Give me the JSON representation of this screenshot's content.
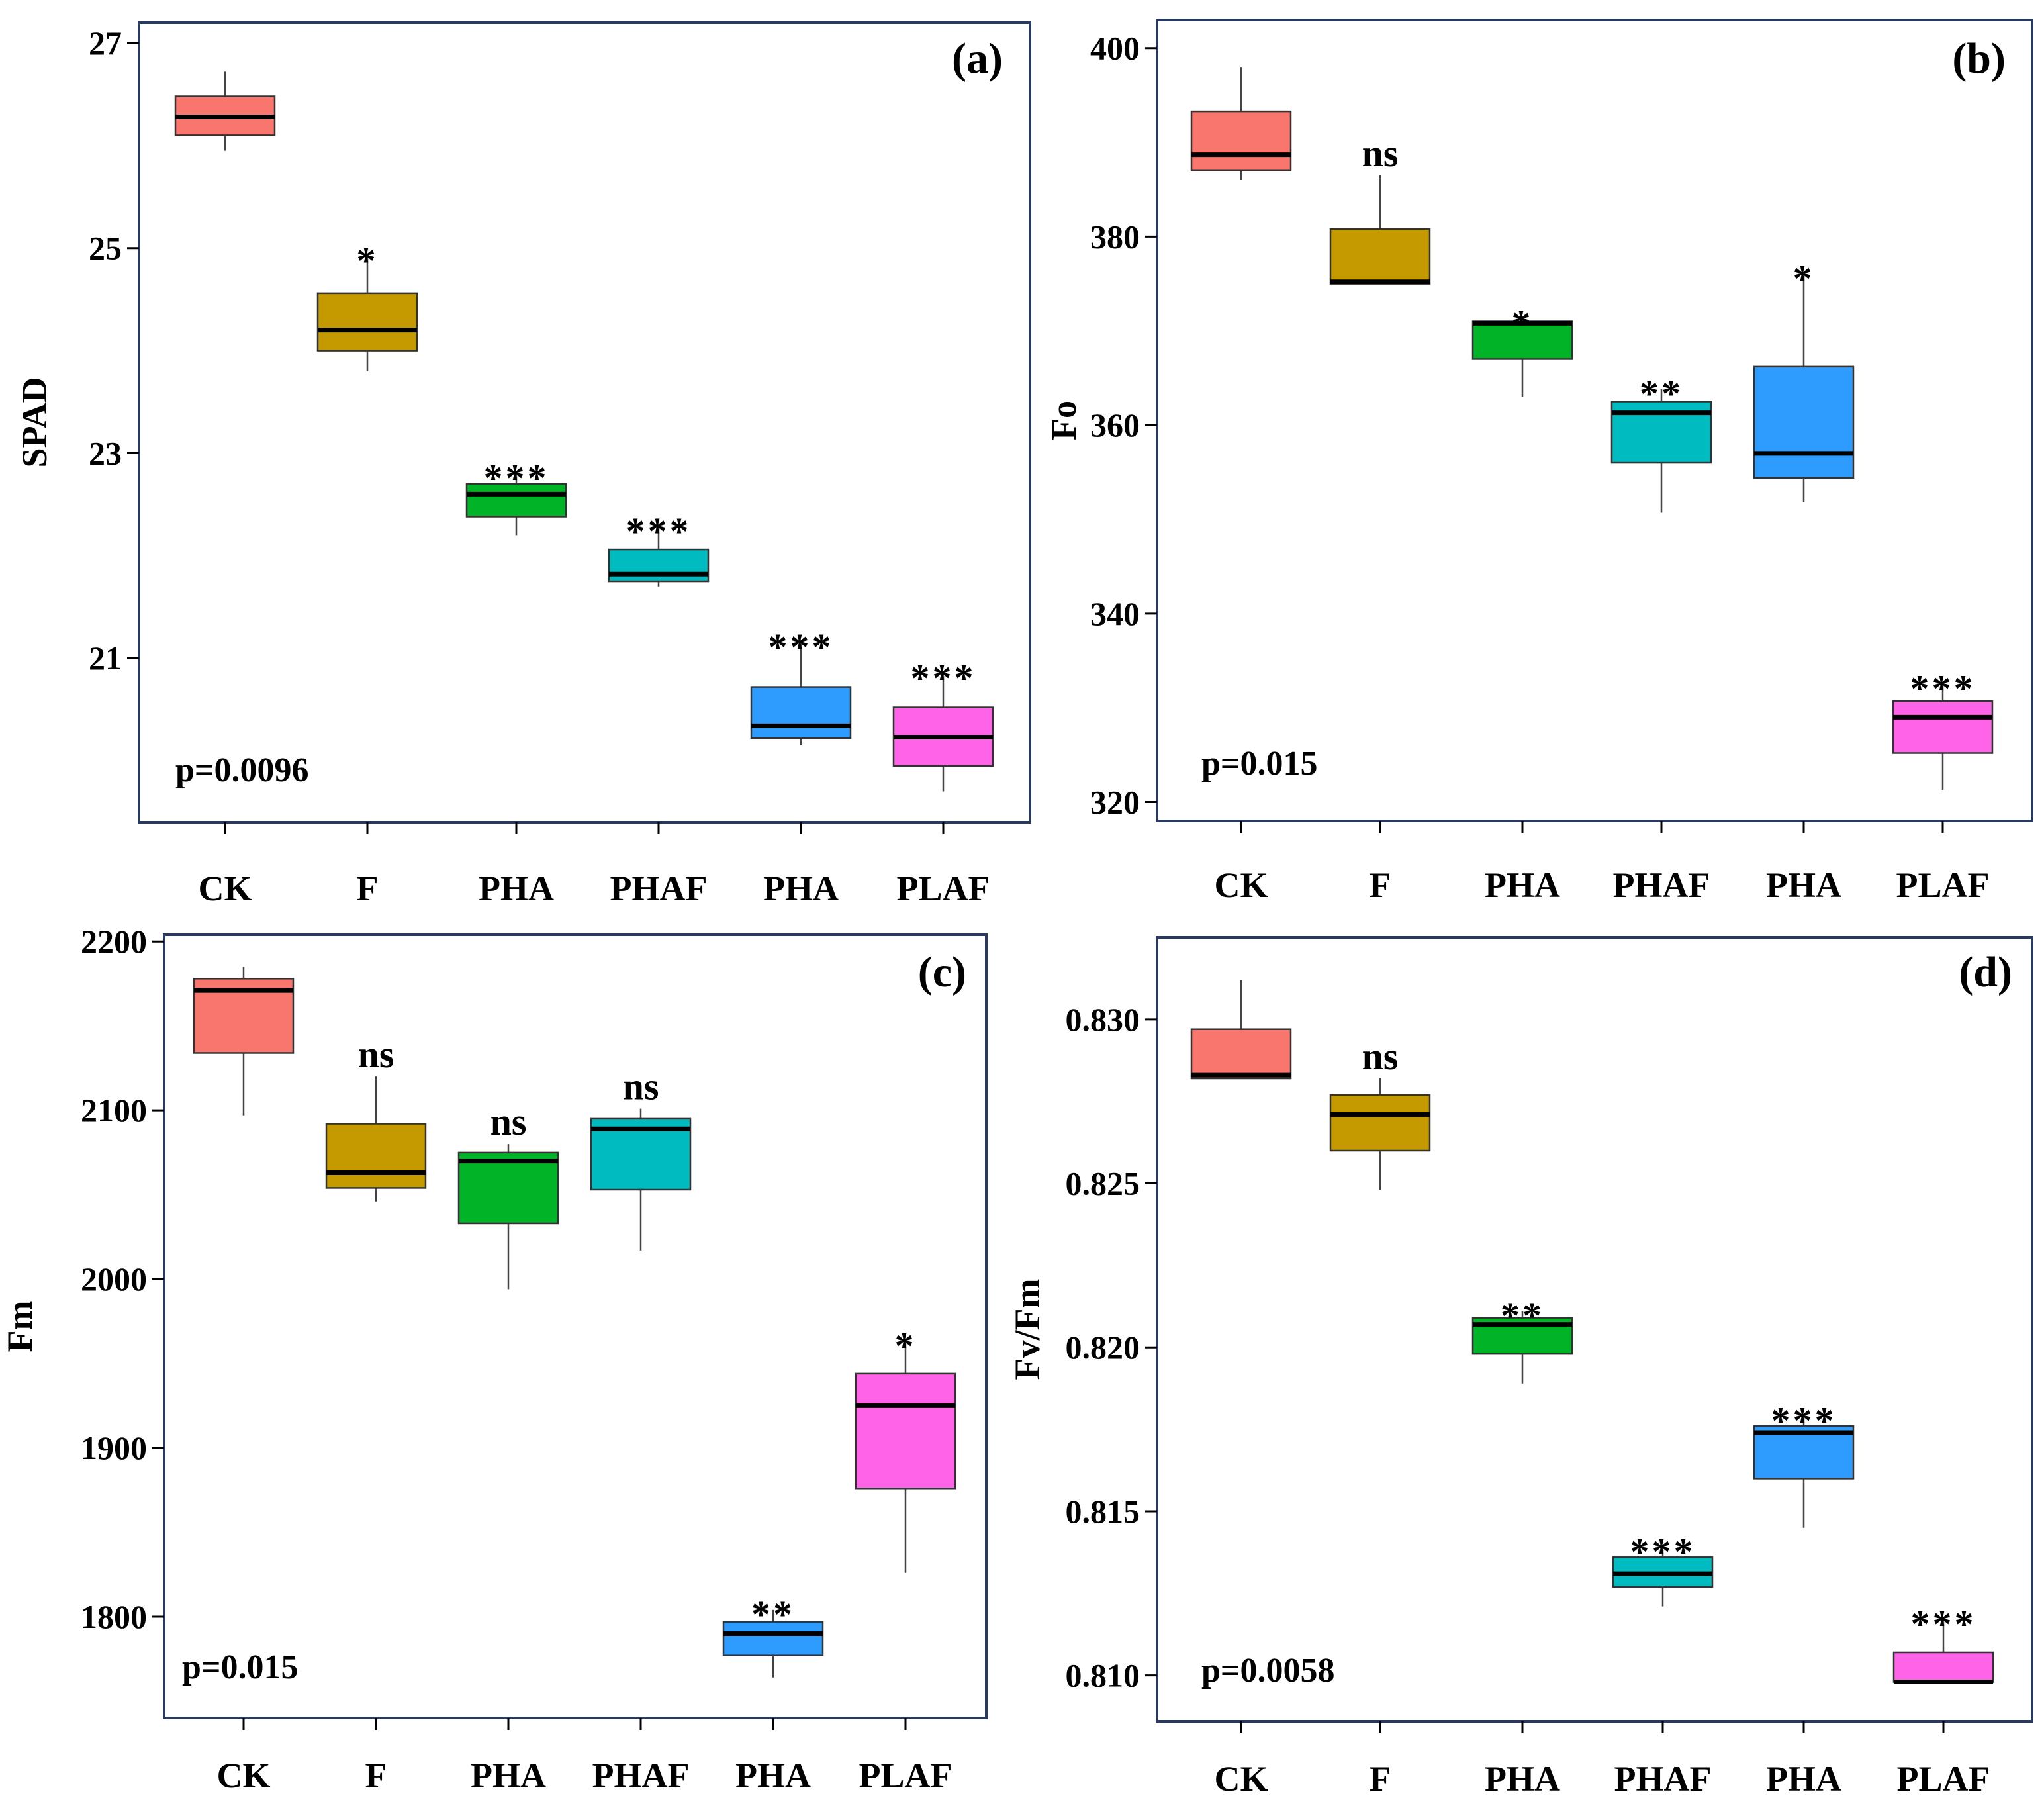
{
  "chart_data": [
    {
      "type": "boxplot",
      "panel_label": "(a)",
      "ylabel": "SPAD",
      "ylim": [
        19.4,
        27.2
      ],
      "yticks": [
        21,
        23,
        25,
        27
      ],
      "ytick_labels": [
        "21",
        "23",
        "25",
        "27"
      ],
      "categories": [
        "CK",
        "F",
        "PHA",
        "PHAF",
        "PHA",
        "PLAF"
      ],
      "p_value": "p=0.0096",
      "boxes": [
        {
          "min": 25.95,
          "q1": 26.1,
          "median": 26.28,
          "q3": 26.48,
          "max": 26.72,
          "color": "#f8766d",
          "sig": ""
        },
        {
          "min": 23.8,
          "q1": 24.0,
          "median": 24.2,
          "q3": 24.56,
          "max": 24.92,
          "color": "#c49a00",
          "sig": "*"
        },
        {
          "min": 22.2,
          "q1": 22.38,
          "median": 22.6,
          "q3": 22.7,
          "max": 22.8,
          "color": "#00b327",
          "sig": "***"
        },
        {
          "min": 21.7,
          "q1": 21.75,
          "median": 21.82,
          "q3": 22.06,
          "max": 22.28,
          "color": "#00bcc0",
          "sig": "***"
        },
        {
          "min": 20.15,
          "q1": 20.22,
          "median": 20.34,
          "q3": 20.72,
          "max": 21.15,
          "color": "#2e9cff",
          "sig": "***"
        },
        {
          "min": 19.7,
          "q1": 19.95,
          "median": 20.23,
          "q3": 20.52,
          "max": 20.85,
          "color": "#ff63e8",
          "sig": "***"
        }
      ]
    },
    {
      "type": "boxplot",
      "panel_label": "(b)",
      "ylabel": "Fo",
      "ylim": [
        318,
        403
      ],
      "yticks": [
        320,
        340,
        360,
        380,
        400
      ],
      "ytick_labels": [
        "320",
        "340",
        "360",
        "380",
        "400"
      ],
      "categories": [
        "CK",
        "F",
        "PHA",
        "PHAF",
        "PHA",
        "PLAF"
      ],
      "p_value": "p=0.015",
      "boxes": [
        {
          "min": 386,
          "q1": 387,
          "median": 388.7,
          "q3": 393.3,
          "max": 398,
          "color": "#f8766d",
          "sig": ""
        },
        {
          "min": 375,
          "q1": 375,
          "median": 375.2,
          "q3": 380.8,
          "max": 386.5,
          "color": "#c49a00",
          "sig": "ns"
        },
        {
          "min": 363,
          "q1": 367,
          "median": 370.8,
          "q3": 371,
          "max": 371.2,
          "color": "#00b327",
          "sig": "*"
        },
        {
          "min": 350.7,
          "q1": 356,
          "median": 361.3,
          "q3": 362.5,
          "max": 363.8,
          "color": "#00bcc0",
          "sig": "**"
        },
        {
          "min": 351.8,
          "q1": 354.4,
          "median": 357,
          "q3": 366.2,
          "max": 376,
          "color": "#2e9cff",
          "sig": "*"
        },
        {
          "min": 321.3,
          "q1": 325.2,
          "median": 329,
          "q3": 330.7,
          "max": 332.5,
          "color": "#ff63e8",
          "sig": "***"
        }
      ]
    },
    {
      "type": "boxplot",
      "panel_label": "(c)",
      "ylabel": "Fm",
      "ylim": [
        1740,
        2204
      ],
      "yticks": [
        1800,
        1900,
        2000,
        2100,
        2200
      ],
      "ytick_labels": [
        "1800",
        "1900",
        "2000",
        "2100",
        "2200"
      ],
      "categories": [
        "CK",
        "F",
        "PHA",
        "PHAF",
        "PHA",
        "PLAF"
      ],
      "p_value": "p=0.015",
      "boxes": [
        {
          "min": 2097,
          "q1": 2134,
          "median": 2171,
          "q3": 2178,
          "max": 2185,
          "color": "#f8766d",
          "sig": ""
        },
        {
          "min": 2046,
          "q1": 2054,
          "median": 2063,
          "q3": 2092,
          "max": 2120,
          "color": "#c49a00",
          "sig": "ns"
        },
        {
          "min": 1994,
          "q1": 2033,
          "median": 2070,
          "q3": 2075,
          "max": 2080,
          "color": "#00b327",
          "sig": "ns"
        },
        {
          "min": 2017,
          "q1": 2053,
          "median": 2089,
          "q3": 2095,
          "max": 2101,
          "color": "#00bcc0",
          "sig": "ns"
        },
        {
          "min": 1764,
          "q1": 1777,
          "median": 1790,
          "q3": 1797,
          "max": 1804,
          "color": "#2e9cff",
          "sig": "**"
        },
        {
          "min": 1826,
          "q1": 1876,
          "median": 1925,
          "q3": 1944,
          "max": 1963,
          "color": "#ff63e8",
          "sig": "*"
        }
      ]
    },
    {
      "type": "boxplot",
      "panel_label": "(d)",
      "ylabel": "Fv/Fm",
      "ylim": [
        0.8086,
        0.8325
      ],
      "yticks": [
        0.81,
        0.815,
        0.82,
        0.825,
        0.83
      ],
      "ytick_labels": [
        "0.810",
        "0.815",
        "0.820",
        "0.825",
        "0.830"
      ],
      "categories": [
        "CK",
        "F",
        "PHA",
        "PHAF",
        "PHA",
        "PLAF"
      ],
      "p_value": "p=0.0058",
      "boxes": [
        {
          "min": 0.8282,
          "q1": 0.8282,
          "median": 0.8283,
          "q3": 0.8297,
          "max": 0.8312,
          "color": "#f8766d",
          "sig": ""
        },
        {
          "min": 0.8248,
          "q1": 0.826,
          "median": 0.8271,
          "q3": 0.8277,
          "max": 0.8282,
          "color": "#c49a00",
          "sig": "ns"
        },
        {
          "min": 0.8189,
          "q1": 0.8198,
          "median": 0.8207,
          "q3": 0.8209,
          "max": 0.8211,
          "color": "#00b327",
          "sig": "**"
        },
        {
          "min": 0.8121,
          "q1": 0.8127,
          "median": 0.8131,
          "q3": 0.8136,
          "max": 0.8139,
          "color": "#00bcc0",
          "sig": "***"
        },
        {
          "min": 0.8145,
          "q1": 0.816,
          "median": 0.8174,
          "q3": 0.8176,
          "max": 0.8179,
          "color": "#2e9cff",
          "sig": "***"
        },
        {
          "min": 0.8098,
          "q1": 0.8098,
          "median": 0.8098,
          "q3": 0.8107,
          "max": 0.8117,
          "color": "#ff63e8",
          "sig": "***"
        }
      ]
    }
  ]
}
